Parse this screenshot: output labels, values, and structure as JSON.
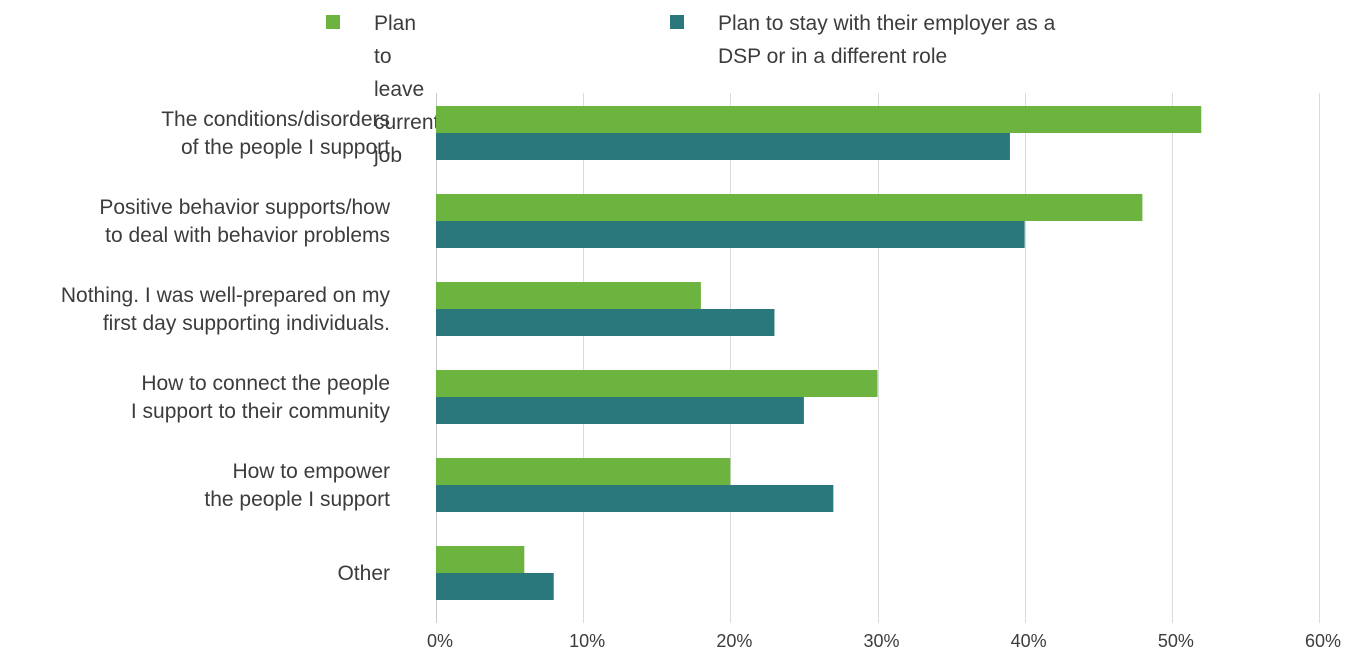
{
  "chart_data": {
    "type": "bar",
    "orientation": "horizontal",
    "categories": [
      "The conditions/disorders\nof the people I support",
      "Positive behavior supports/how\nto deal with behavior problems",
      "Nothing. I was well-prepared on my\nfirst day supporting individuals.",
      "How to connect the people\nI support to their community",
      "How to empower\nthe people I support",
      "Other"
    ],
    "series": [
      {
        "name": "Plan to leave current job",
        "color": "#6db33f",
        "values": [
          52,
          48,
          18,
          30,
          20,
          6
        ]
      },
      {
        "name": "Plan to stay with their employer as a\nDSP or in a different role",
        "color": "#2b787c",
        "values": [
          39,
          40,
          23,
          25,
          27,
          8
        ]
      }
    ],
    "xlim": [
      0,
      60
    ],
    "xticks": [
      0,
      10,
      20,
      30,
      40,
      50,
      60
    ],
    "xtick_labels": [
      "0%",
      "10%",
      "20%",
      "30%",
      "40%",
      "50%",
      "60%"
    ],
    "grid": true,
    "legend_position": "top"
  }
}
